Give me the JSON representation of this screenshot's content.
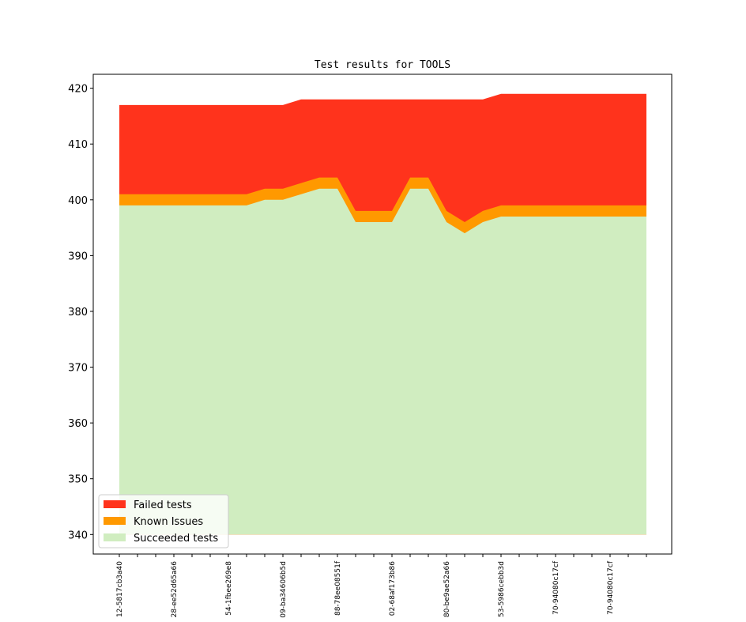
{
  "chart_data": {
    "type": "area",
    "title": "Test results for TOOLS",
    "xlabel": "",
    "ylabel": "",
    "ylim": [
      336.5,
      422.5
    ],
    "yticks": [
      340,
      350,
      360,
      370,
      380,
      390,
      400,
      410,
      420
    ],
    "x_count": 30,
    "xtick_labels": [
      {
        "index": 0,
        "label": "12-5817cb3a40"
      },
      {
        "index": 3,
        "label": "28-ee52d65a66"
      },
      {
        "index": 6,
        "label": "54-1fbee269e8"
      },
      {
        "index": 9,
        "label": "09-ba34606b5d"
      },
      {
        "index": 12,
        "label": "88-78ee08551f"
      },
      {
        "index": 15,
        "label": "02-68af173b86"
      },
      {
        "index": 18,
        "label": "80-be9ae52a66"
      },
      {
        "index": 21,
        "label": "53-5986cebb3d"
      },
      {
        "index": 24,
        "label": "70-94080c17cf"
      },
      {
        "index": 27,
        "label": "70-94080c17cf"
      }
    ],
    "series": [
      {
        "name": "Succeeded tests",
        "color": "#d0edc0",
        "values": [
          399,
          399,
          399,
          399,
          399,
          399,
          399,
          399,
          400,
          400,
          401,
          402,
          402,
          396,
          396,
          396,
          402,
          402,
          396,
          394,
          396,
          397,
          397,
          397,
          397,
          397,
          397,
          397,
          397,
          397
        ]
      },
      {
        "name": "Known Issues",
        "color": "#ff9900",
        "values": [
          401,
          401,
          401,
          401,
          401,
          401,
          401,
          401,
          402,
          402,
          403,
          404,
          404,
          398,
          398,
          398,
          404,
          404,
          398,
          396,
          398,
          399,
          399,
          399,
          399,
          399,
          399,
          399,
          399,
          399
        ]
      },
      {
        "name": "Failed tests",
        "color": "#ff331c",
        "values": [
          417,
          417,
          417,
          417,
          417,
          417,
          417,
          417,
          417,
          417,
          418,
          418,
          418,
          418,
          418,
          418,
          418,
          418,
          418,
          418,
          418,
          419,
          419,
          419,
          419,
          419,
          419,
          419,
          419,
          419
        ]
      }
    ],
    "baseline": 340,
    "legend": {
      "position": "lower-left",
      "entries": [
        "Failed tests",
        "Known Issues",
        "Succeeded tests"
      ]
    }
  }
}
